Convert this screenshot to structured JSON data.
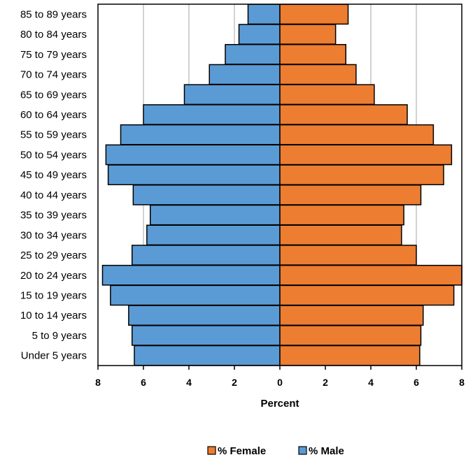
{
  "chart_data": {
    "type": "bar",
    "orientation": "horizontal",
    "layout": "population-pyramid",
    "categories": [
      "85 to 89 years",
      "80 to 84 years",
      "75 to 79 years",
      "70 to 74 years",
      "65 to 69 years",
      "60 to 64 years",
      "55 to 59 years",
      "50 to 54 years",
      "45 to 49 years",
      "40 to 44 years",
      "35 to 39 years",
      "30 to 34 years",
      "25 to 29 years",
      "20 to 24 years",
      "15 to 19 years",
      "10 to 14 years",
      "5 to 9 years",
      "Under 5 years"
    ],
    "series": [
      {
        "name": "% Male",
        "side": "left",
        "color": "#5b9bd5",
        "values": [
          1.4,
          1.8,
          2.4,
          3.1,
          4.2,
          6.0,
          7.0,
          7.65,
          7.55,
          6.45,
          5.7,
          5.85,
          6.5,
          7.8,
          7.45,
          6.65,
          6.5,
          6.4
        ]
      },
      {
        "name": "% Female",
        "side": "right",
        "color": "#ed7d31",
        "values": [
          3.0,
          2.45,
          2.9,
          3.35,
          4.15,
          5.6,
          6.75,
          7.55,
          7.2,
          6.2,
          5.45,
          5.35,
          6.0,
          8.0,
          7.65,
          6.3,
          6.2,
          6.15
        ]
      }
    ],
    "xlabel": "Percent",
    "ylabel": "",
    "xlim": [
      -8,
      8
    ],
    "x_ticks": [
      -8,
      -6,
      -4,
      -2,
      0,
      2,
      4,
      6,
      8
    ],
    "x_tick_labels": [
      "8",
      "6",
      "4",
      "2",
      "0",
      "2",
      "4",
      "6",
      "8"
    ],
    "grid": "vertical",
    "legend_position": "bottom",
    "legend_order": [
      "% Female",
      "% Male"
    ]
  }
}
